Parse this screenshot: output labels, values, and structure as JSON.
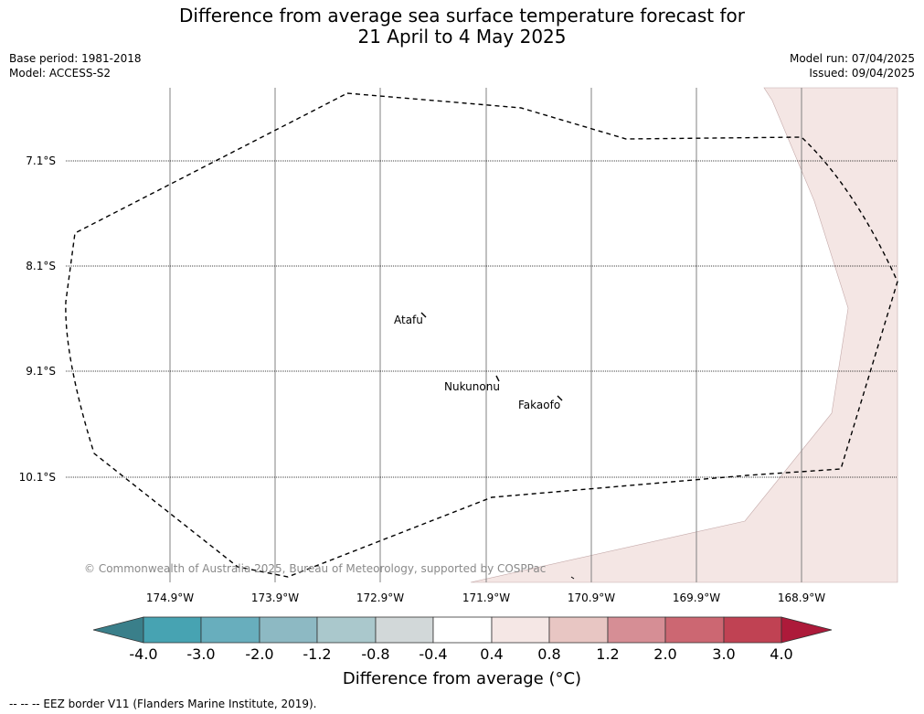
{
  "title": {
    "line1": "Difference from average sea surface temperature forecast for",
    "line2": "21 April to 4 May 2025"
  },
  "meta": {
    "base_period": "Base period: 1981-2018",
    "model": "Model: ACCESS-S2",
    "model_run": "Model run: 07/04/2025",
    "issued": "Issued: 09/04/2025"
  },
  "map": {
    "latitude_labels": [
      "7.1°S",
      "8.1°S",
      "9.1°S",
      "10.1°S"
    ],
    "longitude_labels": [
      "174.9°W",
      "173.9°W",
      "172.9°W",
      "171.9°W",
      "170.9°W",
      "169.9°W",
      "168.9°W"
    ],
    "places": [
      "Atafu",
      "Nukunonu",
      "Fakaofo"
    ],
    "copyright": "© Commonwealth of Australia 2025, Bureau of Meteorology, supported by COSPPac",
    "anomaly_fill_color": "#f4e6e4"
  },
  "colorbar": {
    "title": "Difference from average (°C)",
    "tick_labels": [
      "-4.0",
      "-3.0",
      "-2.0",
      "-1.2",
      "-0.8",
      "-0.4",
      "0.4",
      "0.8",
      "1.2",
      "2.0",
      "3.0",
      "4.0"
    ],
    "colors": [
      "#3a7f8a",
      "#47a3b2",
      "#68aebd",
      "#8db9c3",
      "#aac8cc",
      "#d2d8d9",
      "#ffffff",
      "#f5e7e5",
      "#e8c6c3",
      "#d68e95",
      "#cc6772",
      "#c04253",
      "#ad1a3a"
    ]
  },
  "footer": "-- -- -- EEZ border V11 (Flanders Marine Institute, 2019)."
}
